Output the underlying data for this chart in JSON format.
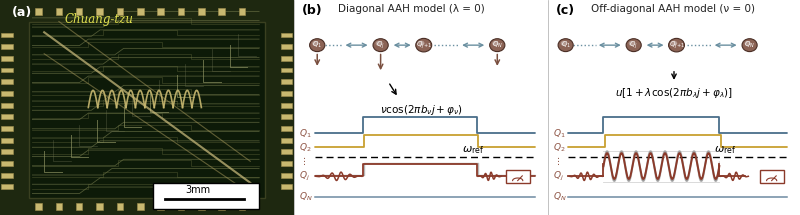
{
  "panel_a_label": "(a)",
  "panel_b_label": "(b)",
  "panel_c_label": "(c)",
  "chip_label": "Chuang-tzu",
  "scale_bar": "3mm",
  "b_title": "Diagonal AAH model (λ = 0)",
  "c_title": "Off-diagonal AAH model (ν = 0)",
  "node_color": "#8B6355",
  "node_edge_color": "#4a2e25",
  "arrow_color": "#6a8fa0",
  "down_arrow_color": "#7a5040",
  "line_color_q1": "#4a6e8a",
  "line_color_q2": "#c8a030",
  "line_color_qj": "#8b3a2a",
  "line_color_gray": "#888888",
  "chip_bg": "#2a3a1a",
  "chip_circuit": "#8a7a50",
  "chip_pad": "#b0a060"
}
